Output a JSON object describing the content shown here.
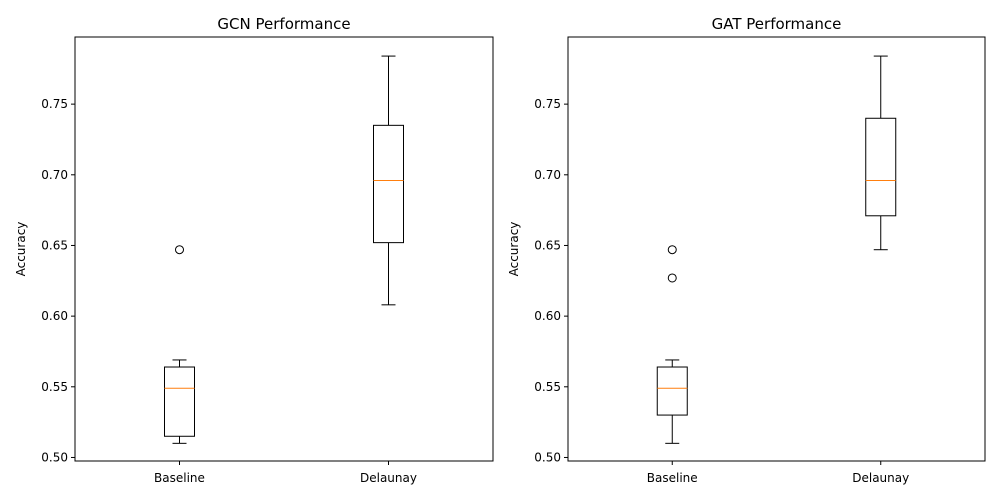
{
  "chart_data": [
    {
      "type": "box",
      "title": "GCN Performance",
      "xlabel": "",
      "ylabel": "Accuracy",
      "categories": [
        "Baseline",
        "Delaunay"
      ],
      "ylim": [
        0.4975,
        0.7975
      ],
      "yticks": [
        0.5,
        0.55,
        0.6,
        0.65,
        0.7,
        0.75
      ],
      "yticklabels": [
        "0.50",
        "0.55",
        "0.60",
        "0.65",
        "0.70",
        "0.75"
      ],
      "boxes": [
        {
          "category": "Baseline",
          "whisker_low": 0.51,
          "q1": 0.515,
          "median": 0.549,
          "q3": 0.564,
          "whisker_high": 0.569,
          "outliers": [
            0.647
          ]
        },
        {
          "category": "Delaunay",
          "whisker_low": 0.608,
          "q1": 0.652,
          "median": 0.696,
          "q3": 0.735,
          "whisker_high": 0.784,
          "outliers": []
        }
      ]
    },
    {
      "type": "box",
      "title": "GAT Performance",
      "xlabel": "",
      "ylabel": "Accuracy",
      "categories": [
        "Baseline",
        "Delaunay"
      ],
      "ylim": [
        0.4975,
        0.7975
      ],
      "yticks": [
        0.5,
        0.55,
        0.6,
        0.65,
        0.7,
        0.75
      ],
      "yticklabels": [
        "0.50",
        "0.55",
        "0.60",
        "0.65",
        "0.70",
        "0.75"
      ],
      "boxes": [
        {
          "category": "Baseline",
          "whisker_low": 0.51,
          "q1": 0.53,
          "median": 0.549,
          "q3": 0.564,
          "whisker_high": 0.569,
          "outliers": [
            0.647,
            0.627
          ]
        },
        {
          "category": "Delaunay",
          "whisker_low": 0.647,
          "q1": 0.671,
          "median": 0.696,
          "q3": 0.74,
          "whisker_high": 0.784,
          "outliers": []
        }
      ]
    }
  ],
  "colors": {
    "box": "#000000",
    "median": "#ff7f0e",
    "axes": "#000000",
    "background": "#ffffff"
  }
}
